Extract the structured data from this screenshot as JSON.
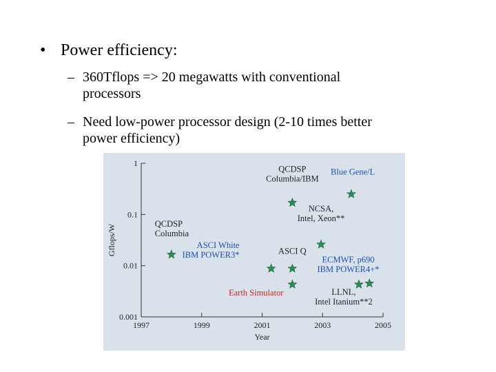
{
  "slide": {
    "bullet": "Power efficiency:",
    "sub_items": [
      {
        "dash": "–",
        "lines": [
          "360Tflops => 20 megawatts with conventional",
          "processors"
        ]
      },
      {
        "dash": "–",
        "lines": [
          "Need low-power processor design (2-10 times better",
          "power efficiency)"
        ]
      }
    ]
  },
  "chart_data": {
    "type": "scatter",
    "xlabel": "Year",
    "ylabel": "Gflops/W",
    "xlim": [
      1997,
      2005
    ],
    "ylim": [
      0.001,
      1
    ],
    "yscale": "log",
    "x_ticks": [
      "1997",
      "1999",
      "2001",
      "2003",
      "2005"
    ],
    "y_ticks": [
      {
        "v": 1,
        "label": "1"
      },
      {
        "v": 0.1,
        "label": "0.1"
      },
      {
        "v": 0.01,
        "label": "0.01"
      },
      {
        "v": 0.001,
        "label": "0.001"
      }
    ],
    "marker_color": "#2e8b57",
    "points": [
      {
        "x": 1998.0,
        "y": 0.0165,
        "name": "QCDSP Columbia"
      },
      {
        "x": 2001.3,
        "y": 0.0088
      },
      {
        "x": 2002.0,
        "y": 0.0088
      },
      {
        "x": 2002.0,
        "y": 0.0043
      },
      {
        "x": 2002.0,
        "y": 0.17,
        "name": "QCDSP Columbia/IBM"
      },
      {
        "x": 2002.95,
        "y": 0.026,
        "name": "NCSA, Intel, Xeon**"
      },
      {
        "x": 2003.95,
        "y": 0.25,
        "name": "Blue Gene/L"
      },
      {
        "x": 2004.2,
        "y": 0.0043
      },
      {
        "x": 2004.55,
        "y": 0.0045
      }
    ],
    "annotations": [
      {
        "lines": [
          "QCDSP",
          "Columbia"
        ],
        "x": 1997.45,
        "y": 0.058,
        "anchor": "start",
        "color": "#222222"
      },
      {
        "lines": [
          "QCDSP",
          "Columbia/IBM"
        ],
        "x": 2002.0,
        "y": 0.68,
        "anchor": "middle",
        "color": "#222222"
      },
      {
        "lines": [
          "Blue Gene/L"
        ],
        "x": 2004.0,
        "y": 0.6,
        "anchor": "middle",
        "color": "#1f4fa8"
      },
      {
        "lines": [
          "NCSA,",
          "Intel, Xeon**"
        ],
        "x": 2002.95,
        "y": 0.115,
        "anchor": "middle",
        "color": "#222222"
      },
      {
        "lines": [
          "ASCI White",
          "IBM POWER3*"
        ],
        "x": 2000.25,
        "y": 0.022,
        "anchor": "end",
        "color": "#1f4fa8"
      },
      {
        "lines": [
          "ASCI Q"
        ],
        "x": 2002.0,
        "y": 0.017,
        "anchor": "middle",
        "color": "#222222"
      },
      {
        "lines": [
          "ECMWF, p690",
          "IBM POWER4+*"
        ],
        "x": 2003.85,
        "y": 0.0115,
        "anchor": "middle",
        "color": "#1f4fa8"
      },
      {
        "lines": [
          "Earth Simulator"
        ],
        "x": 2000.8,
        "y": 0.0026,
        "anchor": "middle",
        "color": "#c0282d"
      },
      {
        "lines": [
          "LLNL,",
          "Intel Itanium**2"
        ],
        "x": 2003.7,
        "y": 0.0027,
        "anchor": "middle",
        "color": "#222222"
      }
    ]
  }
}
